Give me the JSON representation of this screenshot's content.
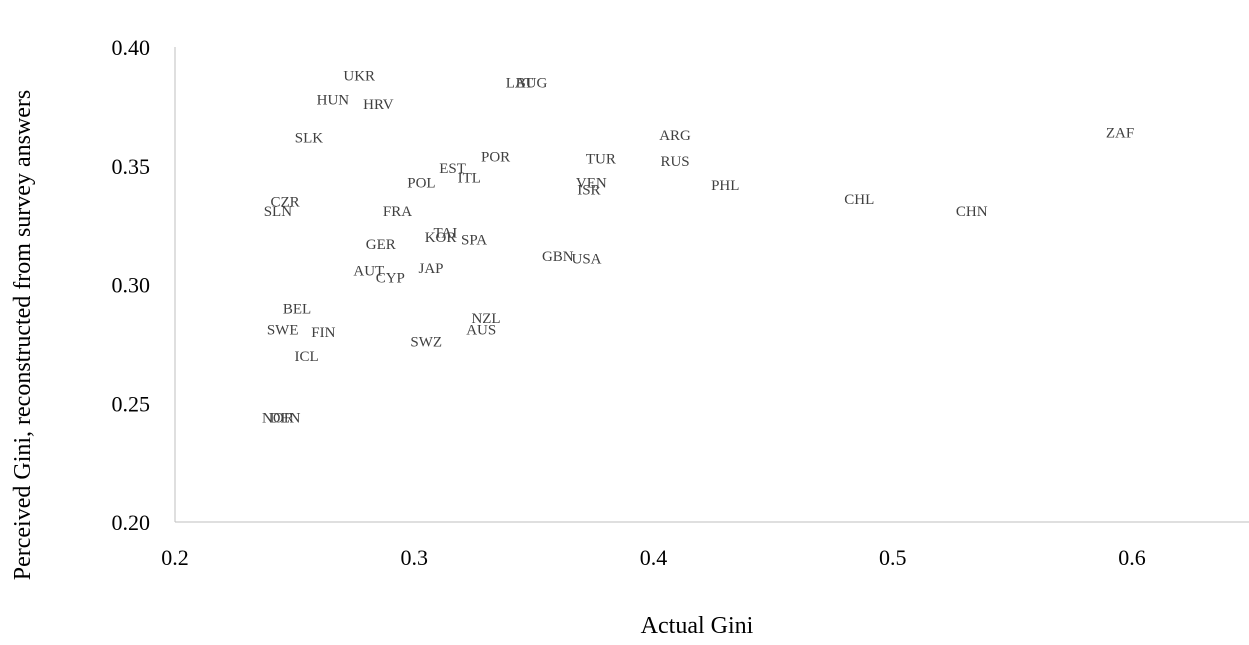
{
  "chart_data": {
    "type": "scatter",
    "title": "",
    "xlabel": "Actual Gini",
    "ylabel": "Perceived Gini, reconstructed from survey answers",
    "xlim": [
      0.2,
      0.65
    ],
    "ylim": [
      0.2,
      0.4
    ],
    "xticks": [
      "0.2",
      "0.3",
      "0.4",
      "0.5",
      "0.6"
    ],
    "yticks": [
      "0.20",
      "0.25",
      "0.30",
      "0.35",
      "0.40"
    ],
    "grid": false,
    "legend": "none",
    "points": [
      {
        "label": "UKR",
        "x": 0.277,
        "y": 0.388
      },
      {
        "label": "LAT",
        "x": 0.344,
        "y": 0.385
      },
      {
        "label": "BUG",
        "x": 0.349,
        "y": 0.385
      },
      {
        "label": "HUN",
        "x": 0.266,
        "y": 0.378
      },
      {
        "label": "HRV",
        "x": 0.285,
        "y": 0.376
      },
      {
        "label": "SLK",
        "x": 0.256,
        "y": 0.362
      },
      {
        "label": "ZAF",
        "x": 0.595,
        "y": 0.364
      },
      {
        "label": "ARG",
        "x": 0.409,
        "y": 0.363
      },
      {
        "label": "POR",
        "x": 0.334,
        "y": 0.354
      },
      {
        "label": "TUR",
        "x": 0.378,
        "y": 0.353
      },
      {
        "label": "RUS",
        "x": 0.409,
        "y": 0.352
      },
      {
        "label": "EST",
        "x": 0.316,
        "y": 0.349
      },
      {
        "label": "ITL",
        "x": 0.323,
        "y": 0.345
      },
      {
        "label": "POL",
        "x": 0.303,
        "y": 0.343
      },
      {
        "label": "VEN",
        "x": 0.374,
        "y": 0.343
      },
      {
        "label": "PHL",
        "x": 0.43,
        "y": 0.342
      },
      {
        "label": "ISR",
        "x": 0.373,
        "y": 0.34
      },
      {
        "label": "CHL",
        "x": 0.486,
        "y": 0.336
      },
      {
        "label": "CZR",
        "x": 0.246,
        "y": 0.335
      },
      {
        "label": "SLN",
        "x": 0.243,
        "y": 0.331
      },
      {
        "label": "FRA",
        "x": 0.293,
        "y": 0.331
      },
      {
        "label": "CHN",
        "x": 0.533,
        "y": 0.331
      },
      {
        "label": "TAI",
        "x": 0.313,
        "y": 0.322
      },
      {
        "label": "KOR",
        "x": 0.311,
        "y": 0.32
      },
      {
        "label": "SPA",
        "x": 0.325,
        "y": 0.319
      },
      {
        "label": "GER",
        "x": 0.286,
        "y": 0.317
      },
      {
        "label": "GBN",
        "x": 0.36,
        "y": 0.312
      },
      {
        "label": "USA",
        "x": 0.372,
        "y": 0.311
      },
      {
        "label": "JAP",
        "x": 0.307,
        "y": 0.307
      },
      {
        "label": "AUT",
        "x": 0.281,
        "y": 0.306
      },
      {
        "label": "CYP",
        "x": 0.29,
        "y": 0.303
      },
      {
        "label": "BEL",
        "x": 0.251,
        "y": 0.29
      },
      {
        "label": "NZL",
        "x": 0.33,
        "y": 0.286
      },
      {
        "label": "AUS",
        "x": 0.328,
        "y": 0.281
      },
      {
        "label": "SWE",
        "x": 0.245,
        "y": 0.281
      },
      {
        "label": "FIN",
        "x": 0.262,
        "y": 0.28
      },
      {
        "label": "SWZ",
        "x": 0.305,
        "y": 0.276
      },
      {
        "label": "ICL",
        "x": 0.255,
        "y": 0.27
      },
      {
        "label": "NOR",
        "x": 0.243,
        "y": 0.244
      },
      {
        "label": "DEN",
        "x": 0.246,
        "y": 0.244
      }
    ]
  }
}
